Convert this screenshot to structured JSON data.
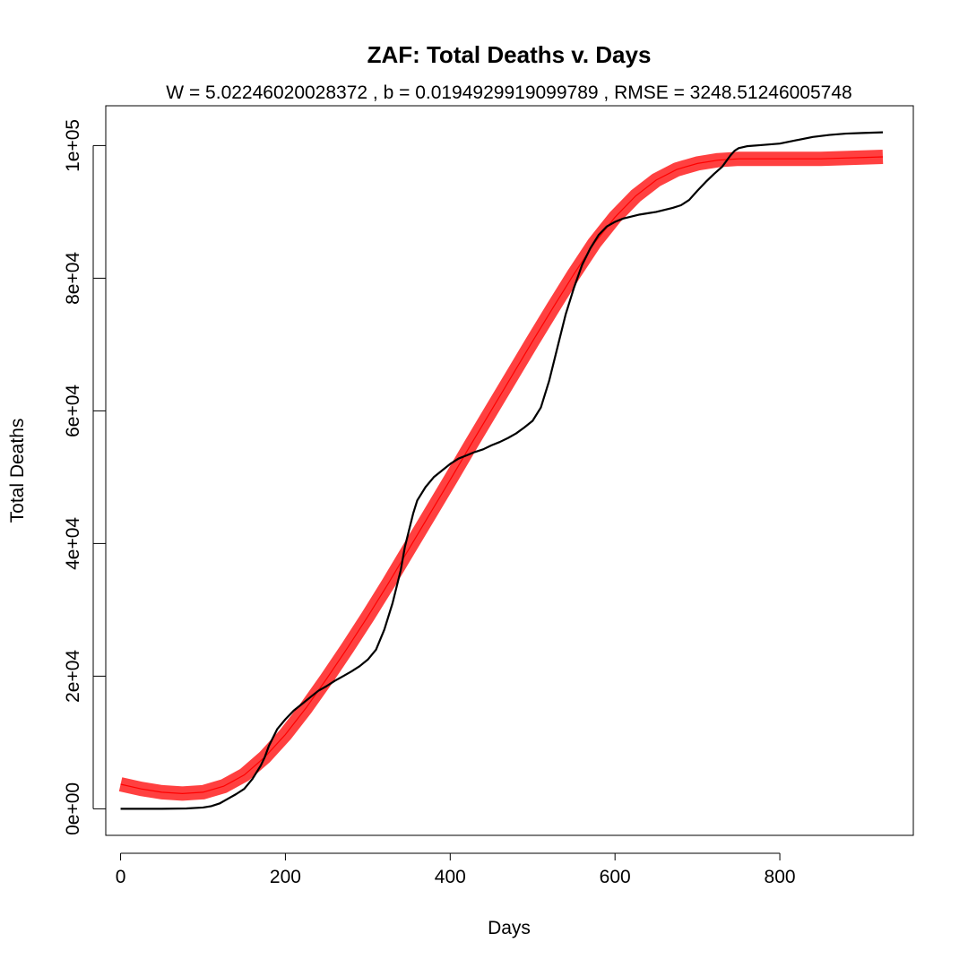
{
  "chart_data": {
    "type": "line",
    "title": "ZAF: Total Deaths v. Days",
    "subtitle": "W = 5.02246020028372 , b = 0.0194929919099789 , RMSE = 3248.51246005748",
    "xlabel": "Days",
    "ylabel": "Total Deaths",
    "xlim": [
      -18,
      962
    ],
    "ylim": [
      -4000,
      106000
    ],
    "x_ticks": [
      0,
      200,
      400,
      600,
      800
    ],
    "x_tick_labels": [
      "0",
      "200",
      "400",
      "600",
      "800"
    ],
    "y_ticks": [
      0,
      20000,
      40000,
      60000,
      80000,
      100000
    ],
    "y_tick_labels": [
      "0e+00",
      "2e+04",
      "4e+04",
      "6e+04",
      "8e+04",
      "1e+05"
    ],
    "grid": false,
    "colors": {
      "actual": "#000000",
      "fit": "#ff0000"
    },
    "series": [
      {
        "role": "actual",
        "x": [
          0,
          50,
          80,
          100,
          110,
          120,
          130,
          140,
          150,
          160,
          170,
          175,
          180,
          190,
          200,
          210,
          220,
          230,
          240,
          250,
          260,
          270,
          280,
          290,
          300,
          310,
          320,
          330,
          340,
          345,
          350,
          355,
          360,
          370,
          380,
          390,
          400,
          410,
          420,
          430,
          440,
          450,
          460,
          470,
          480,
          490,
          500,
          510,
          520,
          530,
          540,
          550,
          560,
          570,
          580,
          590,
          600,
          610,
          620,
          630,
          640,
          650,
          660,
          670,
          680,
          690,
          700,
          710,
          720,
          730,
          740,
          745,
          750,
          760,
          780,
          800,
          820,
          840,
          860,
          880,
          900,
          925
        ],
        "y": [
          0,
          0,
          50,
          200,
          400,
          800,
          1500,
          2200,
          3000,
          4500,
          6500,
          7800,
          9500,
          12000,
          13500,
          14800,
          15800,
          16800,
          17800,
          18500,
          19300,
          20000,
          20700,
          21500,
          22500,
          24000,
          27000,
          31000,
          36000,
          39500,
          42000,
          44500,
          46500,
          48500,
          50000,
          51000,
          52000,
          52800,
          53300,
          53800,
          54200,
          54800,
          55300,
          55900,
          56600,
          57500,
          58500,
          60500,
          64500,
          69500,
          74500,
          78500,
          82000,
          84500,
          86500,
          87800,
          88500,
          89000,
          89300,
          89600,
          89800,
          90000,
          90300,
          90600,
          91000,
          91800,
          93200,
          94500,
          95700,
          96800,
          98500,
          99200,
          99600,
          99900,
          100100,
          100300,
          100800,
          101300,
          101600,
          101800,
          101900,
          102000
        ]
      },
      {
        "role": "fit",
        "x": [
          0,
          25,
          50,
          75,
          100,
          125,
          150,
          175,
          200,
          225,
          250,
          275,
          300,
          325,
          350,
          375,
          400,
          425,
          450,
          475,
          500,
          525,
          550,
          575,
          600,
          625,
          650,
          675,
          700,
          725,
          750,
          775,
          800,
          825,
          850,
          875,
          900,
          925
        ],
        "y": [
          3700,
          3000,
          2500,
          2300,
          2500,
          3400,
          5100,
          7800,
          11200,
          15200,
          19600,
          24200,
          29000,
          34000,
          39200,
          44400,
          49600,
          54900,
          60100,
          65300,
          70500,
          75600,
          80600,
          85300,
          89200,
          92400,
          94800,
          96400,
          97300,
          97800,
          98000,
          98000,
          98000,
          98000,
          98000,
          98100,
          98200,
          98300
        ]
      }
    ]
  }
}
